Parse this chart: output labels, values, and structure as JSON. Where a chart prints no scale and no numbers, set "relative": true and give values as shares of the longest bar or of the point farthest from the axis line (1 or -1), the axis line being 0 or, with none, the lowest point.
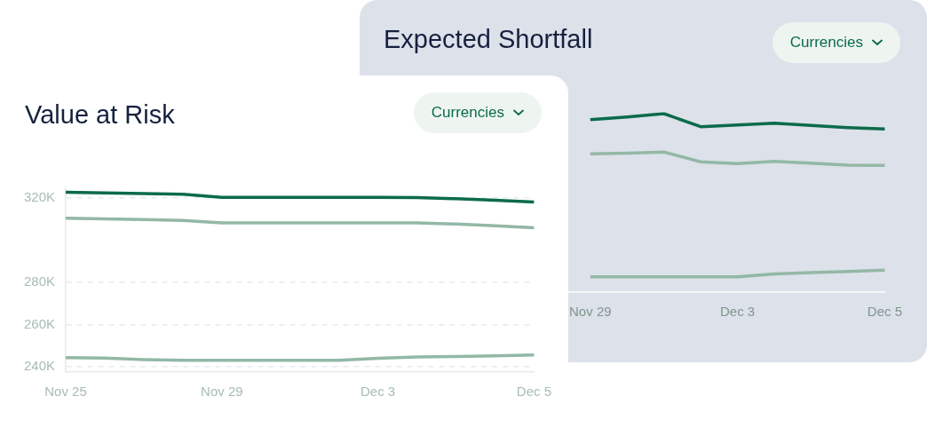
{
  "chart_data": [
    {
      "type": "line",
      "title": "Expected Shortfall",
      "annotations": [
        "Currencies"
      ],
      "relative": true,
      "legend": false,
      "marker": "none",
      "categories": [
        null,
        null,
        null,
        null,
        "Nov 29",
        null,
        null,
        null,
        "Dec 3",
        null,
        null,
        null,
        "Dec 5"
      ],
      "series": [
        {
          "color": "#0b6b4a",
          "values": [
            null,
            null,
            null,
            null,
            0.966,
            0.981,
            1.0,
            0.927,
            0.936,
            0.947,
            0.934,
            0.922,
            0.914
          ]
        },
        {
          "color": "#93b8a6",
          "values": [
            null,
            null,
            null,
            null,
            0.775,
            0.779,
            0.785,
            0.73,
            0.72,
            0.733,
            0.723,
            0.711,
            0.71
          ]
        },
        {
          "color": "#93b8a6",
          "values": [
            null,
            null,
            null,
            null,
            0.086,
            0.086,
            0.086,
            0.086,
            0.086,
            0.102,
            0.11,
            0.116,
            0.123
          ]
        }
      ]
    },
    {
      "type": "line",
      "title": "Value at Risk",
      "annotations": [
        "Currencies"
      ],
      "grid": "y",
      "legend": false,
      "marker": "none",
      "categories": [
        "Nov 25",
        null,
        null,
        null,
        "Nov 29",
        null,
        null,
        null,
        "Dec 3",
        null,
        null,
        null,
        "Dec 5"
      ],
      "ylim": [
        237500,
        325000
      ],
      "yticks": [
        {
          "value": 240000,
          "label": "240K"
        },
        {
          "value": 260000,
          "label": "260K"
        },
        {
          "value": 280000,
          "label": "280K"
        },
        {
          "value": 320000,
          "label": "320K"
        }
      ],
      "series": [
        {
          "color": "#0b6b4a",
          "values": [
            322700,
            322400,
            322100,
            321700,
            320300,
            320300,
            320300,
            320300,
            320300,
            320200,
            319600,
            318900,
            318100
          ]
        },
        {
          "color": "#93b8a6",
          "values": [
            310400,
            310100,
            309700,
            309300,
            308200,
            308200,
            308200,
            308200,
            308200,
            308200,
            307600,
            306800,
            305900
          ]
        },
        {
          "color": "#93b8a6",
          "values": [
            244300,
            244100,
            243400,
            243100,
            243100,
            243100,
            243100,
            243100,
            244000,
            244600,
            244900,
            245200,
            245600
          ]
        }
      ]
    }
  ]
}
